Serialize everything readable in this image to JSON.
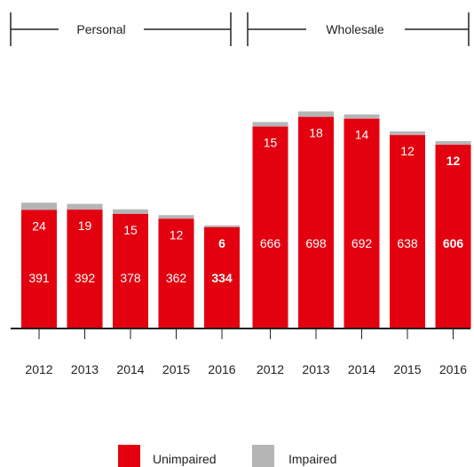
{
  "chart_data": {
    "type": "bar",
    "stacked": true,
    "groups": [
      {
        "label": "Personal",
        "categories": [
          "2012",
          "2013",
          "2014",
          "2015",
          "2016"
        ]
      },
      {
        "label": "Wholesale",
        "categories": [
          "2012",
          "2013",
          "2014",
          "2015",
          "2016"
        ]
      }
    ],
    "categories": [
      "2012",
      "2013",
      "2014",
      "2015",
      "2016",
      "2012",
      "2013",
      "2014",
      "2015",
      "2016"
    ],
    "series": [
      {
        "name": "Unimpaired",
        "color": "#e3000f",
        "values": [
          391,
          392,
          378,
          362,
          334,
          666,
          698,
          692,
          638,
          606
        ],
        "label_values": [
          "391",
          "392",
          "378",
          "362",
          "334",
          "666",
          "698",
          "692",
          "638",
          "606"
        ]
      },
      {
        "name": "Impaired",
        "color": "#b5b5b5",
        "values": [
          24,
          19,
          15,
          12,
          6,
          15,
          18,
          14,
          12,
          12
        ],
        "label_values": [
          "24",
          "19",
          "15",
          "12",
          "6",
          "15",
          "18",
          "14",
          "12",
          "12"
        ]
      }
    ],
    "bold_categories_index": [
      4,
      9
    ],
    "ylim": [
      0,
      720
    ],
    "grid": false,
    "legend_position": "bottom"
  }
}
